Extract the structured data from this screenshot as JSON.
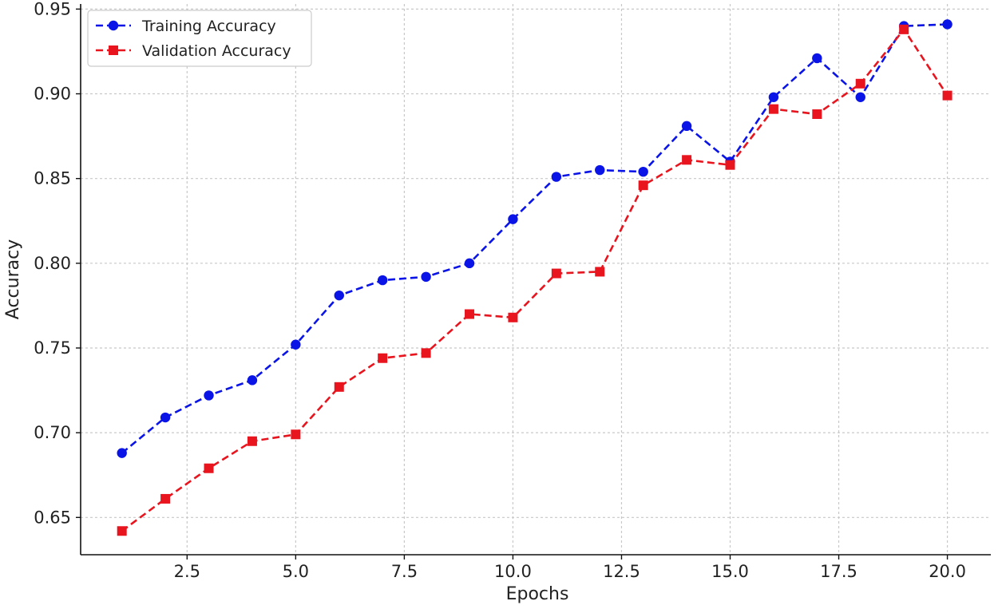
{
  "chart_data": {
    "type": "line",
    "title": "",
    "xlabel": "Epochs",
    "ylabel": "Accuracy",
    "xlim": [
      0.05,
      21.0
    ],
    "ylim": [
      0.628,
      0.953
    ],
    "x_ticks": [
      2.5,
      5.0,
      7.5,
      10.0,
      12.5,
      15.0,
      17.5,
      20.0
    ],
    "x_tick_labels": [
      "2.5",
      "5.0",
      "7.5",
      "10.0",
      "12.5",
      "15.0",
      "17.5",
      "20.0"
    ],
    "y_ticks": [
      0.65,
      0.7,
      0.75,
      0.8,
      0.85,
      0.9,
      0.95
    ],
    "y_tick_labels": [
      "0.65",
      "0.70",
      "0.75",
      "0.80",
      "0.85",
      "0.90",
      "0.95"
    ],
    "grid": true,
    "legend_position": "top-left",
    "x": [
      1,
      2,
      3,
      4,
      5,
      6,
      7,
      8,
      9,
      10,
      11,
      12,
      13,
      14,
      15,
      16,
      17,
      18,
      19,
      20
    ],
    "series": [
      {
        "name": "Training Accuracy",
        "color": "#0a14e6",
        "marker": "circle",
        "line_style": "dashed",
        "values": [
          0.688,
          0.709,
          0.722,
          0.731,
          0.752,
          0.781,
          0.79,
          0.792,
          0.8,
          0.826,
          0.851,
          0.855,
          0.854,
          0.881,
          0.86,
          0.898,
          0.921,
          0.898,
          0.94,
          0.941
        ]
      },
      {
        "name": "Validation Accuracy",
        "color": "#e8141e",
        "marker": "square",
        "line_style": "dashed",
        "values": [
          0.642,
          0.661,
          0.679,
          0.695,
          0.699,
          0.727,
          0.744,
          0.747,
          0.77,
          0.768,
          0.794,
          0.795,
          0.846,
          0.861,
          0.858,
          0.891,
          0.888,
          0.906,
          0.938,
          0.899
        ]
      }
    ]
  }
}
